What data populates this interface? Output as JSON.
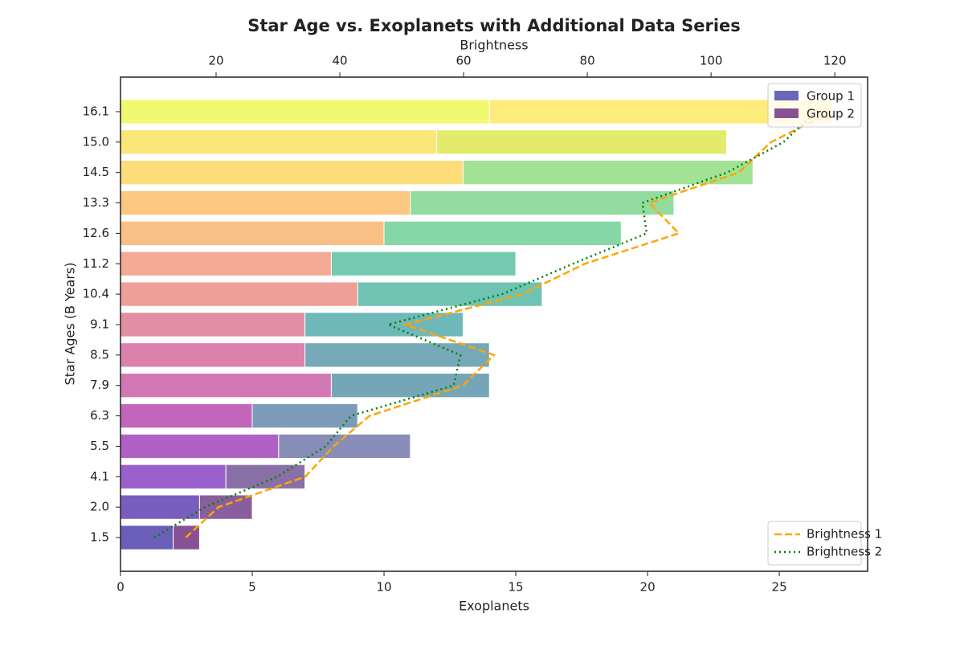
{
  "chart_data": {
    "type": "bar",
    "orientation": "horizontal",
    "stacked": true,
    "title": "Star Age vs. Exoplanets with Additional Data Series",
    "xlabel": "Exoplanets",
    "ylabel": "Star Ages (B Years)",
    "x2label": "Brightness",
    "categories": [
      "1.5",
      "2.0",
      "4.1",
      "5.5",
      "6.3",
      "7.9",
      "8.5",
      "9.1",
      "10.4",
      "11.2",
      "12.6",
      "13.3",
      "14.5",
      "15.0",
      "16.1"
    ],
    "xlim": [
      0,
      28.35
    ],
    "xticks": [
      0,
      5,
      10,
      15,
      20,
      25
    ],
    "x2lim": [
      4.55,
      125.3
    ],
    "x2ticks": [
      20,
      40,
      60,
      80,
      100,
      120
    ],
    "legend": "upper right",
    "line_legend": "lower right",
    "series": [
      {
        "name": "Group 1",
        "color": "#5a55b0",
        "colors": [
          "#5a4db0",
          "#6a4bb5",
          "#8f50c6",
          "#a950c0",
          "#bb55b5",
          "#cd69ad",
          "#d673a3",
          "#df839a",
          "#ec958c",
          "#f2a088",
          "#f9b878",
          "#fcc075",
          "#fdd96a",
          "#fbe36a",
          "#f1f763"
        ],
        "values": [
          2,
          3,
          4,
          6,
          5,
          8,
          7,
          7,
          9,
          8,
          10,
          11,
          13,
          12,
          14
        ]
      },
      {
        "name": "Group 2",
        "color": "#7a3e8a",
        "colors": [
          "#7a3f88",
          "#7b4e91",
          "#7c619c",
          "#7a81ae",
          "#6e90b0",
          "#659caf",
          "#66a0b0",
          "#5fb0b2",
          "#5fbcab",
          "#64c4a5",
          "#78d39d",
          "#86d896",
          "#97df8a",
          "#e0e85c",
          "#fde96d"
        ],
        "values": [
          1,
          2,
          3,
          5,
          4,
          6,
          7,
          6,
          7,
          7,
          9,
          10,
          11,
          11,
          13
        ]
      },
      {
        "name": "Brightness 1",
        "type": "line",
        "axis": "x2",
        "color": "orange",
        "dash": "dashed",
        "values": [
          15.1,
          20.4,
          34.4,
          39,
          44.8,
          59.9,
          64.9,
          50.6,
          69.5,
          79.6,
          94.8,
          90,
          104.5,
          109.7,
          119.5
        ]
      },
      {
        "name": "Brightness 2",
        "type": "line",
        "axis": "x2",
        "color": "green",
        "dash": "dotted",
        "values": [
          10,
          18.2,
          29.9,
          37.7,
          41.8,
          58.4,
          59.5,
          47.8,
          66.2,
          77.7,
          89.6,
          88.9,
          102.6,
          111.7,
          116.9
        ]
      }
    ]
  }
}
